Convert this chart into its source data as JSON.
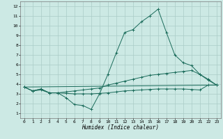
{
  "xlabel": "Humidex (Indice chaleur)",
  "background_color": "#cce9e4",
  "grid_color": "#aaccc7",
  "line_color": "#1a6b5a",
  "x_ticks": [
    0,
    1,
    2,
    3,
    4,
    5,
    6,
    7,
    8,
    9,
    10,
    11,
    12,
    13,
    14,
    15,
    16,
    17,
    18,
    19,
    20,
    21,
    22,
    23
  ],
  "y_ticks": [
    1,
    2,
    3,
    4,
    5,
    6,
    7,
    8,
    9,
    10,
    11,
    12
  ],
  "xlim": [
    -0.5,
    23.5
  ],
  "ylim": [
    0.5,
    12.5
  ],
  "series": [
    {
      "x": [
        0,
        1,
        2,
        3,
        4,
        5,
        6,
        7,
        8,
        9,
        10,
        11,
        12,
        13,
        14,
        15,
        16,
        17,
        18,
        19,
        20,
        21,
        22,
        23
      ],
      "y": [
        3.7,
        3.3,
        3.5,
        3.1,
        3.1,
        2.6,
        1.9,
        1.8,
        1.4,
        3.0,
        5.0,
        7.2,
        9.3,
        9.6,
        10.4,
        11.0,
        11.7,
        9.3,
        7.0,
        6.2,
        5.9,
        5.0,
        4.4,
        3.9
      ]
    },
    {
      "x": [
        0,
        1,
        2,
        3,
        4,
        5,
        6,
        7,
        8,
        9,
        10,
        11,
        12,
        13,
        14,
        15,
        16,
        17,
        18,
        19,
        20,
        21,
        22,
        23
      ],
      "y": [
        3.7,
        3.3,
        3.5,
        3.1,
        3.1,
        3.2,
        3.3,
        3.4,
        3.5,
        3.6,
        3.9,
        4.1,
        4.3,
        4.5,
        4.7,
        4.9,
        5.0,
        5.1,
        5.2,
        5.3,
        5.4,
        5.0,
        4.5,
        3.9
      ]
    },
    {
      "x": [
        0,
        1,
        2,
        3,
        4,
        5,
        6,
        7,
        8,
        9,
        10,
        11,
        12,
        13,
        14,
        15,
        16,
        17,
        18,
        19,
        20,
        21,
        22,
        23
      ],
      "y": [
        3.7,
        3.3,
        3.4,
        3.1,
        3.1,
        3.05,
        3.0,
        3.0,
        3.0,
        3.05,
        3.1,
        3.2,
        3.3,
        3.35,
        3.4,
        3.45,
        3.5,
        3.5,
        3.5,
        3.5,
        3.45,
        3.4,
        3.9,
        3.9
      ]
    },
    {
      "x": [
        0,
        23
      ],
      "y": [
        3.7,
        3.9
      ]
    }
  ]
}
